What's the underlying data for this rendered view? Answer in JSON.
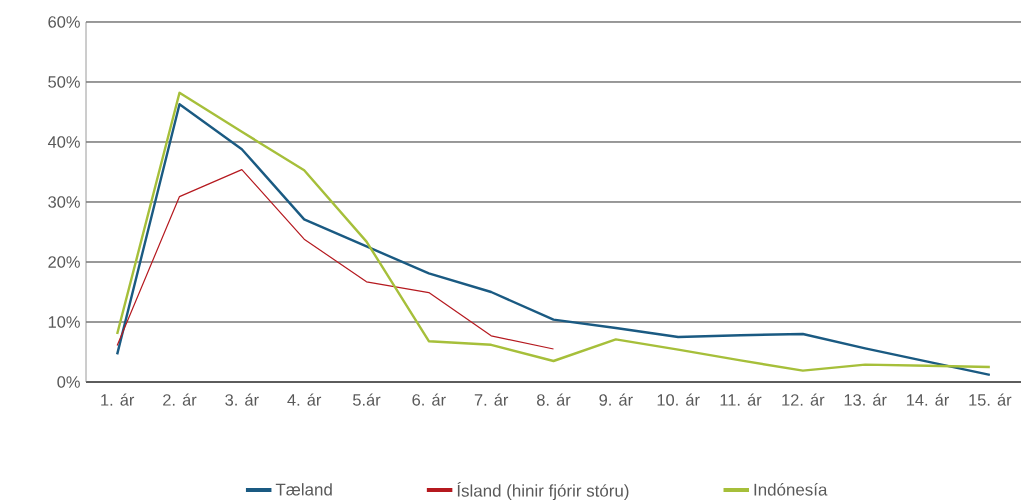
{
  "chart_data": {
    "type": "line",
    "categories": [
      "1. ár",
      "2. ár",
      "3. ár",
      "4. ár",
      "5.ár",
      "6. ár",
      "7. ár",
      "8. ár",
      "9. ár",
      "10. ár",
      "11. ár",
      "12. ár",
      "13. ár",
      "14. ár",
      "15. ár"
    ],
    "series": [
      {
        "name": "Tæland",
        "color": "#1a5a82",
        "values": [
          4.6,
          46.3,
          38.8,
          27.1,
          22.6,
          18.1,
          15.0,
          10.4,
          9.0,
          7.5,
          7.8,
          8.0,
          5.6,
          3.4,
          1.2
        ]
      },
      {
        "name": "Ísland (hinir fjórir stóru)",
        "color": "#b5191f",
        "values": [
          6.1,
          30.9,
          35.4,
          23.8,
          16.7,
          14.9,
          7.7,
          5.5,
          null,
          null,
          null,
          null,
          null,
          null,
          null
        ]
      },
      {
        "name": "Indónesía",
        "color": "#a6bf3a",
        "values": [
          8.0,
          48.2,
          41.7,
          35.3,
          23.4,
          6.8,
          6.2,
          3.5,
          7.1,
          5.4,
          3.6,
          1.9,
          2.9,
          2.7,
          2.5
        ]
      }
    ],
    "ylim": [
      0,
      60
    ],
    "yticks": [
      {
        "value": 0,
        "label": "0%"
      },
      {
        "value": 10,
        "label": "10%"
      },
      {
        "value": 20,
        "label": "20%"
      },
      {
        "value": 30,
        "label": "30%"
      },
      {
        "value": 40,
        "label": "40%"
      },
      {
        "value": 50,
        "label": "50%"
      },
      {
        "value": 60,
        "label": "60%"
      }
    ],
    "grid": "y",
    "legend": "bottom",
    "marker": "none",
    "line_style": "solid"
  }
}
